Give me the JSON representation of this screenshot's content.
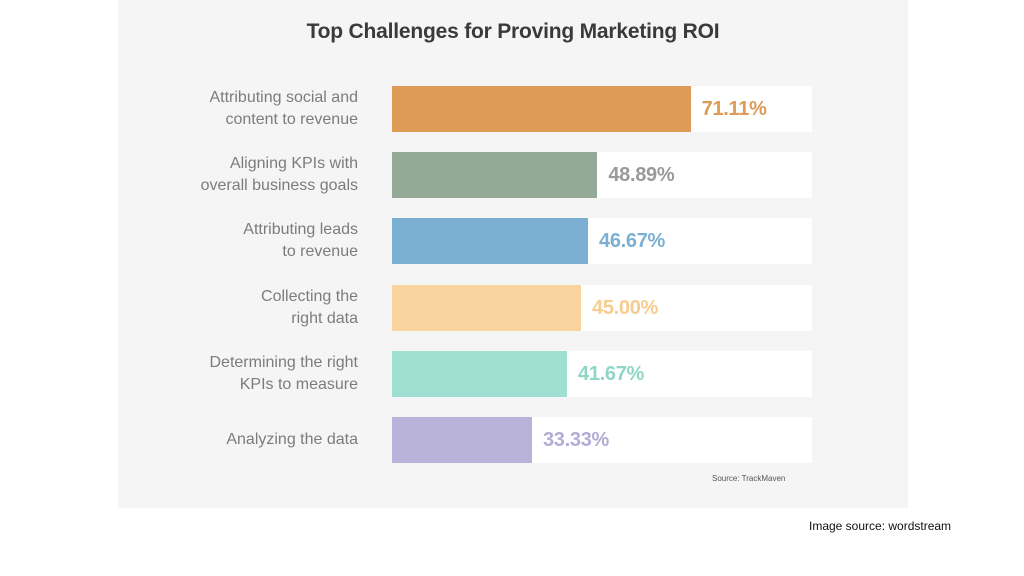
{
  "chart_data": {
    "type": "bar",
    "orientation": "horizontal",
    "title": "Top Challenges for Proving Marketing ROI",
    "categories": [
      "Attributing social and\ncontent to revenue",
      "Aligning KPIs with\noverall business goals",
      "Attributing leads\nto revenue",
      "Collecting the\nright data",
      "Determining the right\nKPIs to measure",
      "Analyzing the data"
    ],
    "values": [
      71.11,
      48.89,
      46.67,
      45.0,
      41.67,
      33.33
    ],
    "value_labels": [
      "71.11%",
      "48.89%",
      "46.67%",
      "45.00%",
      "41.67%",
      "33.33%"
    ],
    "colors": [
      "#dd9b57",
      "#94a996",
      "#7cb0d3",
      "#f9d49f",
      "#9fe0d2",
      "#bab3d9"
    ],
    "label_colors": [
      "#dd9b57",
      "#9a9a9a",
      "#7cb0d3",
      "#f7cc8e",
      "#8fd6c6",
      "#b3acd4"
    ],
    "xlim": [
      0,
      100
    ],
    "grid": false,
    "legend": "none",
    "source": "Source: TrackMaven"
  },
  "footer": {
    "credit": "Image source: wordstream"
  }
}
